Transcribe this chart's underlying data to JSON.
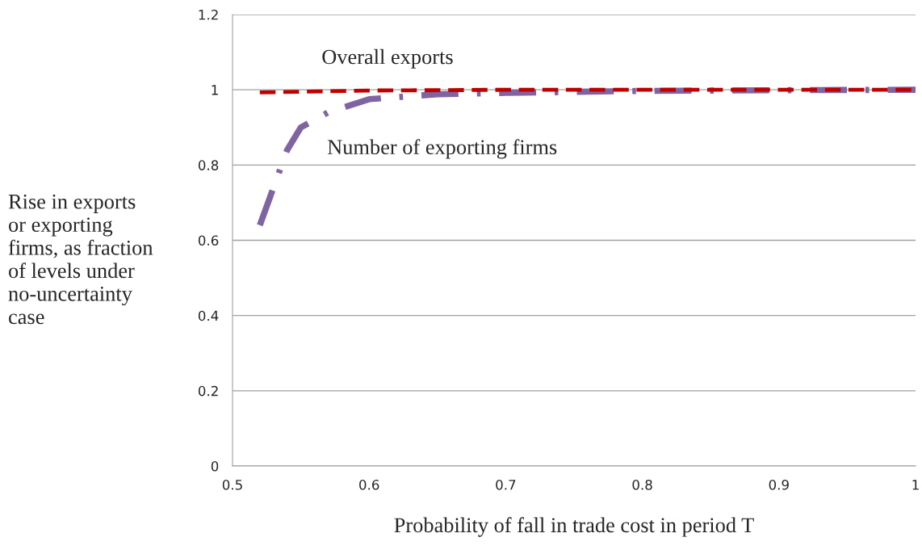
{
  "chart_data": {
    "type": "line",
    "xlabel": "Probability of fall in trade cost in period T",
    "ylabel": "Rise in exports\nor exporting\nfirms, as fraction\nof levels under\nno-uncertainty\ncase",
    "xlim": [
      0.5,
      1
    ],
    "xticks": [
      0.5,
      0.6,
      0.7,
      0.8,
      0.9,
      1
    ],
    "ylim": [
      0,
      1.2
    ],
    "yticks": [
      0,
      0.2,
      0.4,
      0.6,
      0.8,
      1,
      1.2
    ],
    "grid": "y",
    "legend": false,
    "series": [
      {
        "name": "Overall exports",
        "color": "#c00000",
        "line_style": "dashed",
        "x": [
          0.52,
          0.6,
          0.7,
          0.8,
          0.9,
          1.0
        ],
        "values": [
          0.993,
          0.998,
          1.0,
          1.0,
          1.0,
          1.0
        ]
      },
      {
        "name": "Number of exporting firms",
        "color": "#8064a2",
        "line_style": "dashdot",
        "x": [
          0.52,
          0.53,
          0.54,
          0.55,
          0.57,
          0.6,
          0.65,
          0.7,
          0.8,
          0.9,
          1.0
        ],
        "values": [
          0.64,
          0.74,
          0.84,
          0.9,
          0.94,
          0.975,
          0.988,
          0.992,
          0.997,
          0.999,
          1.0
        ]
      }
    ]
  }
}
